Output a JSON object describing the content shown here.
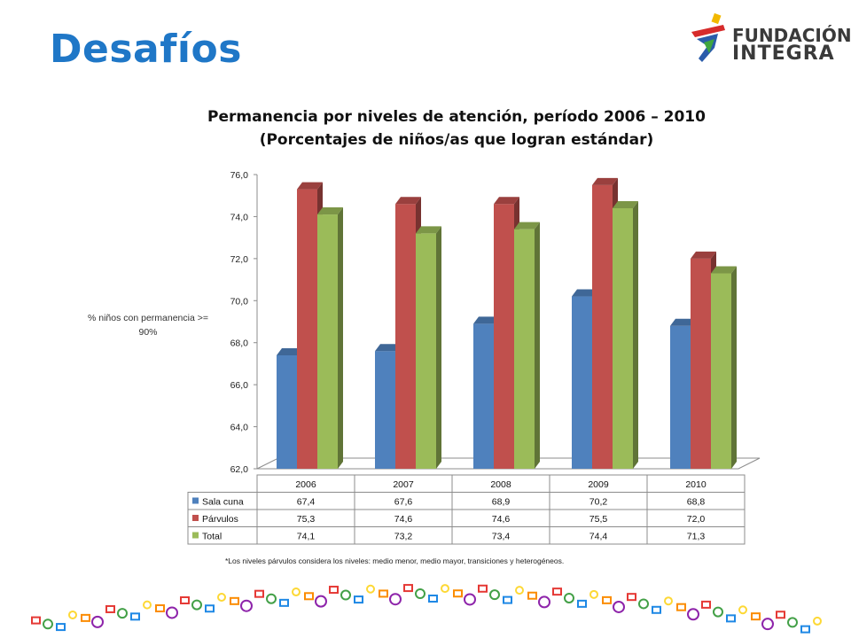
{
  "slide": {
    "title": "Desafíos"
  },
  "logo": {
    "line1": "FUNDACIÓN",
    "line2": "INTEGRA"
  },
  "chart_data": {
    "type": "bar",
    "title_line1": "Permanencia por niveles de atención, período 2006 – 2010",
    "title_line2": "(Porcentajes de niños/as que logran estándar)",
    "ylabel_line1": "% niños con permanencia >=",
    "ylabel_line2": "90%",
    "categories": [
      "2006",
      "2007",
      "2008",
      "2009",
      "2010"
    ],
    "ylim": [
      62,
      76
    ],
    "yticks": [
      "76,0",
      "74,0",
      "72,0",
      "70,0",
      "68,0",
      "66,0",
      "64,0",
      "62,0"
    ],
    "series": [
      {
        "name": "Sala cuna",
        "color": "#4f81bd",
        "values": [
          67.4,
          67.6,
          68.9,
          70.2,
          68.8
        ],
        "labels": [
          "67,4",
          "67,6",
          "68,9",
          "70,2",
          "68,8"
        ]
      },
      {
        "name": "Párvulos",
        "color": "#c0504d",
        "values": [
          75.3,
          74.6,
          74.6,
          75.5,
          72.0
        ],
        "labels": [
          "75,3",
          "74,6",
          "74,6",
          "75,5",
          "72,0"
        ]
      },
      {
        "name": "Total",
        "color": "#9bbb59",
        "values": [
          74.1,
          73.2,
          73.4,
          74.4,
          71.3
        ],
        "labels": [
          "74,1",
          "73,2",
          "73,4",
          "74,4",
          "71,3"
        ]
      }
    ],
    "legend": "data-table-below"
  },
  "footnote": "*Los niveles párvulos considera los niveles: medio menor, medio mayor, transiciones y heterogéneos."
}
